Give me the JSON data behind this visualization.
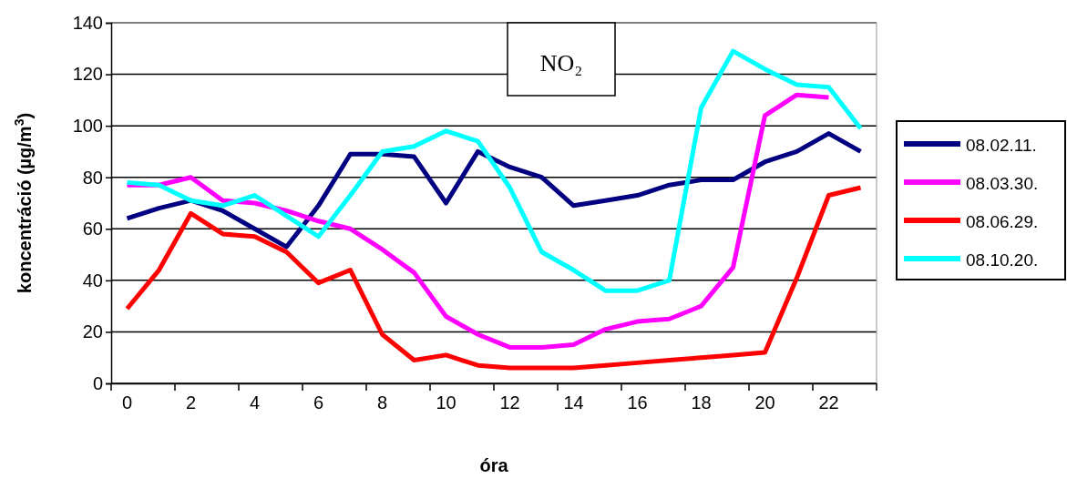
{
  "chart_data": {
    "type": "line",
    "xlabel": "óra",
    "ylabel": "koncentráció (µg/m$^{3}$)",
    "annotations": [
      "NO₂"
    ],
    "categories": [
      "0",
      null,
      "2",
      null,
      "4",
      null,
      "6",
      null,
      "8",
      null,
      "10",
      null,
      "12",
      null,
      "14",
      null,
      "16",
      null,
      "18",
      null,
      "20",
      null,
      "22",
      null
    ],
    "ylim": [
      0,
      140
    ],
    "yticks": [
      0,
      20,
      40,
      60,
      80,
      100,
      120,
      140
    ],
    "grid": "y",
    "legend": "right",
    "marker": "none",
    "line_style": "solid",
    "series": [
      {
        "name": "08.02.11.",
        "color": "#000080",
        "values": [
          64,
          68,
          71,
          67,
          60,
          53,
          69,
          89,
          89,
          88,
          70,
          90,
          84,
          80,
          69,
          71,
          73,
          77,
          79,
          79,
          86,
          90,
          97,
          90
        ]
      },
      {
        "name": "08.03.30.",
        "color": "#ff00ff",
        "values": [
          77,
          77,
          80,
          71,
          70,
          67,
          63,
          60,
          52,
          43,
          26,
          19,
          14,
          14,
          15,
          21,
          24,
          25,
          30,
          45,
          104,
          112,
          111,
          null
        ]
      },
      {
        "name": "08.06.29.",
        "color": "#ff0000",
        "values": [
          29,
          44,
          66,
          58,
          57,
          51,
          39,
          44,
          19,
          9,
          11,
          7,
          6,
          6,
          6,
          7,
          8,
          9,
          10,
          11,
          12,
          41,
          73,
          76
        ]
      },
      {
        "name": "08.10.20.",
        "color": "#00ffff",
        "values": [
          78,
          77,
          71,
          69,
          73,
          65,
          57,
          73,
          90,
          92,
          98,
          94,
          76,
          51,
          44,
          36,
          36,
          40,
          107,
          129,
          122,
          116,
          115,
          99
        ]
      }
    ]
  }
}
